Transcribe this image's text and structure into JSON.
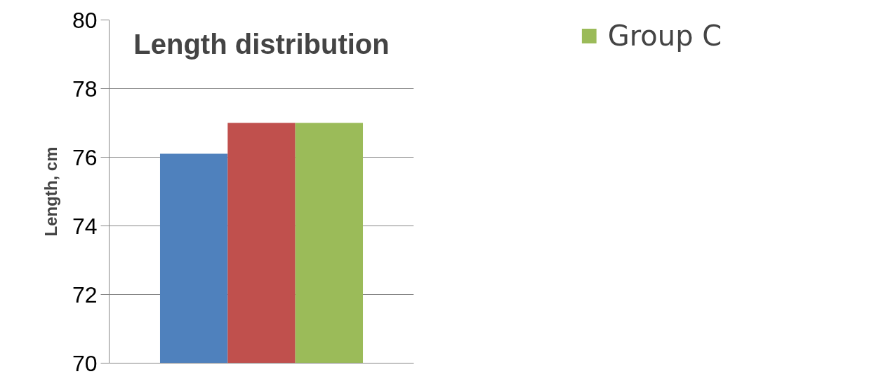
{
  "chart_data": {
    "type": "bar",
    "title": "Length distribution",
    "ylabel": "Length, cm",
    "categories": [
      null
    ],
    "series": [
      {
        "color": "#4f81bd",
        "values": [
          76.1
        ]
      },
      {
        "color": "#c0504d",
        "values": [
          77.0
        ]
      },
      {
        "name": "Group C",
        "color": "#9bbb59",
        "values": [
          77.0
        ]
      }
    ],
    "ylim": [
      70,
      80
    ],
    "yticks": [
      70,
      72,
      74,
      76,
      78,
      80
    ],
    "grid": "y",
    "legend": "top right"
  }
}
